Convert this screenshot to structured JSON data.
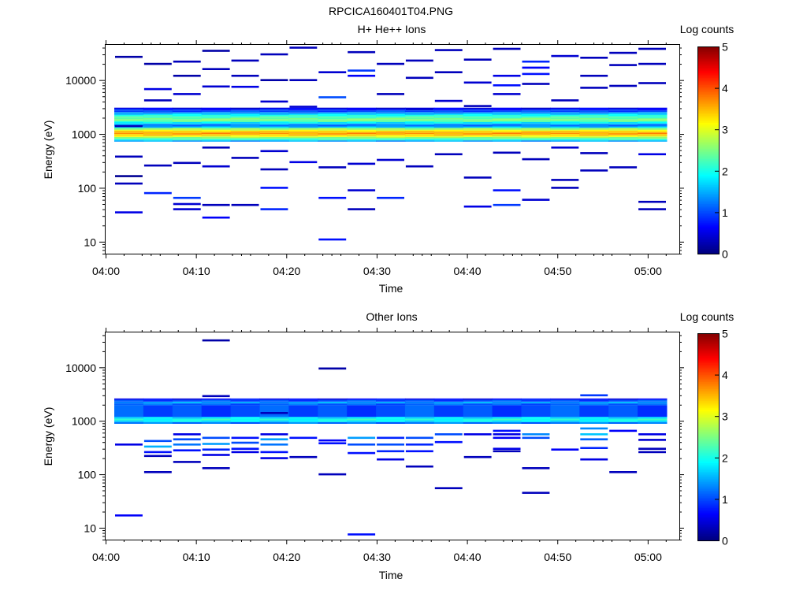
{
  "figure_title": "RPCICA160401T04.PNG",
  "colors": {
    "colormap": [
      "#00007f",
      "#0000ff",
      "#007fff",
      "#00ffff",
      "#7fff7f",
      "#ffff00",
      "#ff7f00",
      "#ff0000",
      "#7f0000"
    ]
  },
  "chart_data": [
    {
      "type": "heatmap",
      "title": "H+ He++ Ions",
      "xlabel": "Time",
      "ylabel": "Energy (eV)",
      "colorbar_label": "Log counts",
      "xticks": [
        "04:00",
        "04:10",
        "04:20",
        "04:30",
        "04:40",
        "04:50",
        "05:00"
      ],
      "xlim_minutes": [
        0,
        63.5
      ],
      "yticks": [
        "10",
        "100",
        "1000",
        "10000"
      ],
      "ylim": [
        6,
        45000
      ],
      "yscale": "log",
      "zlim": [
        0,
        5
      ],
      "cticks": [
        "0",
        "1",
        "2",
        "3",
        "4",
        "5"
      ],
      "band_values": [
        [
          720,
          1.4
        ],
        [
          760,
          2.0
        ],
        [
          800,
          2.3
        ],
        [
          840,
          2.6
        ],
        [
          880,
          3.0
        ],
        [
          920,
          3.3
        ],
        [
          960,
          3.5
        ],
        [
          1000,
          3.6
        ],
        [
          1050,
          3.5
        ],
        [
          1100,
          3.3
        ],
        [
          1150,
          3.0
        ],
        [
          1200,
          2.6
        ],
        [
          1300,
          1.6
        ],
        [
          1380,
          1.2
        ],
        [
          1470,
          1.4
        ],
        [
          1560,
          1.8
        ],
        [
          1660,
          2.2
        ],
        [
          1760,
          2.5
        ],
        [
          1870,
          2.4
        ],
        [
          1990,
          2.2
        ],
        [
          2120,
          2.0
        ],
        [
          2260,
          1.7
        ],
        [
          2400,
          1.3
        ],
        [
          2550,
          1.0
        ],
        [
          2720,
          0.8
        ],
        [
          2900,
          0.5
        ]
      ],
      "sparse": [
        [
          1,
          27000,
          0.2
        ],
        [
          1,
          1400,
          0.3
        ],
        [
          1,
          380,
          0.3
        ],
        [
          1,
          165,
          0.1
        ],
        [
          1,
          120,
          0.3
        ],
        [
          1,
          35,
          0.5
        ],
        [
          2,
          20000,
          0.2
        ],
        [
          2,
          6800,
          0.5
        ],
        [
          2,
          4200,
          0.3
        ],
        [
          2,
          260,
          0.3
        ],
        [
          2,
          80,
          0.8
        ],
        [
          3,
          22000,
          0.3
        ],
        [
          3,
          12000,
          0.2
        ],
        [
          3,
          5500,
          0.4
        ],
        [
          3,
          290,
          0.3
        ],
        [
          3,
          65,
          0.9
        ],
        [
          3,
          50,
          0.4
        ],
        [
          3,
          40,
          0.4
        ],
        [
          4,
          35000,
          0.2
        ],
        [
          4,
          16000,
          0.3
        ],
        [
          4,
          7600,
          0.4
        ],
        [
          4,
          560,
          0.3
        ],
        [
          4,
          250,
          0.4
        ],
        [
          4,
          48,
          0.3
        ],
        [
          4,
          28,
          0.6
        ],
        [
          5,
          23000,
          0.3
        ],
        [
          5,
          12000,
          0.3
        ],
        [
          5,
          7500,
          0.5
        ],
        [
          5,
          360,
          0.3
        ],
        [
          5,
          48,
          0.3
        ],
        [
          6,
          30000,
          0.3
        ],
        [
          6,
          10000,
          0.2
        ],
        [
          6,
          4000,
          0.4
        ],
        [
          6,
          480,
          0.4
        ],
        [
          6,
          220,
          0.3
        ],
        [
          6,
          100,
          0.7
        ],
        [
          6,
          40,
          0.8
        ],
        [
          7,
          40000,
          0.3
        ],
        [
          7,
          10000,
          0.3
        ],
        [
          7,
          3200,
          0.4
        ],
        [
          7,
          300,
          0.5
        ],
        [
          8,
          14000,
          0.4
        ],
        [
          8,
          4800,
          1.0
        ],
        [
          8,
          240,
          0.3
        ],
        [
          8,
          65,
          0.7
        ],
        [
          8,
          11,
          0.7
        ],
        [
          9,
          15000,
          0.9
        ],
        [
          9,
          12000,
          0.6
        ],
        [
          9,
          33000,
          0.3
        ],
        [
          9,
          280,
          0.4
        ],
        [
          9,
          90,
          0.4
        ],
        [
          9,
          40,
          0.3
        ],
        [
          10,
          20000,
          0.3
        ],
        [
          10,
          5500,
          0.3
        ],
        [
          10,
          330,
          0.4
        ],
        [
          10,
          65,
          0.8
        ],
        [
          11,
          23000,
          0.3
        ],
        [
          11,
          11000,
          0.3
        ],
        [
          11,
          2900,
          0.4
        ],
        [
          11,
          250,
          0.3
        ],
        [
          12,
          36000,
          0.3
        ],
        [
          12,
          14000,
          0.3
        ],
        [
          12,
          4100,
          0.4
        ],
        [
          12,
          420,
          0.3
        ],
        [
          13,
          24000,
          0.3
        ],
        [
          13,
          9000,
          0.4
        ],
        [
          13,
          3300,
          0.3
        ],
        [
          13,
          155,
          0.3
        ],
        [
          13,
          45,
          0.5
        ],
        [
          14,
          38000,
          0.3
        ],
        [
          14,
          12000,
          0.5
        ],
        [
          14,
          8000,
          0.7
        ],
        [
          14,
          5500,
          0.4
        ],
        [
          14,
          450,
          0.3
        ],
        [
          14,
          90,
          0.7
        ],
        [
          14,
          48,
          0.9
        ],
        [
          15,
          22000,
          0.8
        ],
        [
          15,
          17000,
          0.6
        ],
        [
          15,
          13000,
          0.7
        ],
        [
          15,
          8500,
          0.3
        ],
        [
          15,
          340,
          0.3
        ],
        [
          15,
          60,
          0.4
        ],
        [
          16,
          28000,
          0.4
        ],
        [
          16,
          4200,
          0.3
        ],
        [
          16,
          560,
          0.4
        ],
        [
          16,
          140,
          0.3
        ],
        [
          16,
          100,
          0.3
        ],
        [
          17,
          26000,
          0.3
        ],
        [
          17,
          12000,
          0.3
        ],
        [
          17,
          7200,
          0.3
        ],
        [
          17,
          440,
          0.3
        ],
        [
          17,
          210,
          0.3
        ],
        [
          18,
          32000,
          0.3
        ],
        [
          18,
          19000,
          0.3
        ],
        [
          18,
          7800,
          0.3
        ],
        [
          18,
          240,
          0.3
        ],
        [
          19,
          38000,
          0.3
        ],
        [
          19,
          20000,
          0.3
        ],
        [
          19,
          8800,
          0.3
        ],
        [
          19,
          420,
          0.5
        ],
        [
          19,
          55,
          0.3
        ],
        [
          19,
          40,
          0.3
        ]
      ]
    },
    {
      "type": "heatmap",
      "title": "Other Ions",
      "xlabel": "Time",
      "ylabel": "Energy (eV)",
      "colorbar_label": "Log counts",
      "xticks": [
        "04:00",
        "04:10",
        "04:20",
        "04:30",
        "04:40",
        "04:50",
        "05:00"
      ],
      "xlim_minutes": [
        0,
        63.5
      ],
      "yticks": [
        "10",
        "100",
        "1000",
        "10000"
      ],
      "ylim": [
        6,
        45000
      ],
      "yscale": "log",
      "zlim": [
        0,
        5
      ],
      "cticks": [
        "0",
        "1",
        "2",
        "3",
        "4",
        "5"
      ],
      "band_values": [
        [
          880,
          1.2
        ],
        [
          950,
          1.8
        ],
        [
          1020,
          2.0
        ],
        [
          1100,
          1.7
        ],
        [
          1190,
          1.0
        ],
        [
          1960,
          1.1
        ],
        [
          2120,
          1.4
        ],
        [
          2290,
          1.0
        ],
        [
          2470,
          0.6
        ]
      ],
      "sparse": [
        [
          1,
          360,
          0.5
        ],
        [
          1,
          17,
          0.6
        ],
        [
          2,
          420,
          1.0
        ],
        [
          2,
          330,
          1.5
        ],
        [
          2,
          260,
          0.7
        ],
        [
          2,
          220,
          0.3
        ],
        [
          2,
          110,
          0.3
        ],
        [
          3,
          560,
          0.5
        ],
        [
          3,
          450,
          1.0
        ],
        [
          3,
          360,
          1.2
        ],
        [
          3,
          280,
          0.7
        ],
        [
          3,
          170,
          0.3
        ],
        [
          4,
          32000,
          0.2
        ],
        [
          4,
          2900,
          0.3
        ],
        [
          4,
          480,
          1.0
        ],
        [
          4,
          370,
          1.4
        ],
        [
          4,
          290,
          0.8
        ],
        [
          4,
          230,
          0.5
        ],
        [
          4,
          130,
          0.3
        ],
        [
          5,
          480,
          0.7
        ],
        [
          5,
          390,
          1.0
        ],
        [
          5,
          300,
          0.7
        ],
        [
          5,
          260,
          0.5
        ],
        [
          6,
          1400,
          0.3
        ],
        [
          6,
          560,
          0.5
        ],
        [
          6,
          450,
          1.4
        ],
        [
          6,
          360,
          1.2
        ],
        [
          6,
          260,
          0.7
        ],
        [
          6,
          200,
          0.5
        ],
        [
          7,
          480,
          0.7
        ],
        [
          7,
          210,
          0.3
        ],
        [
          8,
          9500,
          0.2
        ],
        [
          8,
          430,
          0.6
        ],
        [
          8,
          380,
          0.7
        ],
        [
          8,
          100,
          0.3
        ],
        [
          9,
          480,
          1.4
        ],
        [
          9,
          360,
          1.0
        ],
        [
          9,
          250,
          0.7
        ],
        [
          9,
          7.5,
          0.7
        ],
        [
          10,
          480,
          0.8
        ],
        [
          10,
          360,
          1.0
        ],
        [
          10,
          270,
          0.8
        ],
        [
          10,
          190,
          0.5
        ],
        [
          11,
          480,
          1.0
        ],
        [
          11,
          360,
          0.8
        ],
        [
          11,
          270,
          0.7
        ],
        [
          11,
          140,
          0.3
        ],
        [
          12,
          560,
          1.0
        ],
        [
          12,
          400,
          0.7
        ],
        [
          12,
          55,
          0.3
        ],
        [
          13,
          560,
          0.5
        ],
        [
          13,
          210,
          0.3
        ],
        [
          14,
          650,
          0.7
        ],
        [
          14,
          560,
          0.5
        ],
        [
          14,
          480,
          0.6
        ],
        [
          14,
          300,
          0.5
        ],
        [
          14,
          270,
          0.3
        ],
        [
          15,
          560,
          1.3
        ],
        [
          15,
          480,
          1.0
        ],
        [
          15,
          130,
          0.3
        ],
        [
          15,
          45,
          0.3
        ],
        [
          16,
          290,
          0.6
        ],
        [
          17,
          3000,
          0.9
        ],
        [
          17,
          720,
          1.3
        ],
        [
          17,
          560,
          1.6
        ],
        [
          17,
          450,
          1.1
        ],
        [
          17,
          310,
          0.8
        ],
        [
          17,
          190,
          0.5
        ],
        [
          18,
          650,
          0.6
        ],
        [
          18,
          110,
          0.3
        ],
        [
          19,
          560,
          0.5
        ],
        [
          19,
          440,
          0.4
        ],
        [
          19,
          300,
          0.3
        ],
        [
          19,
          260,
          0.3
        ]
      ]
    }
  ]
}
